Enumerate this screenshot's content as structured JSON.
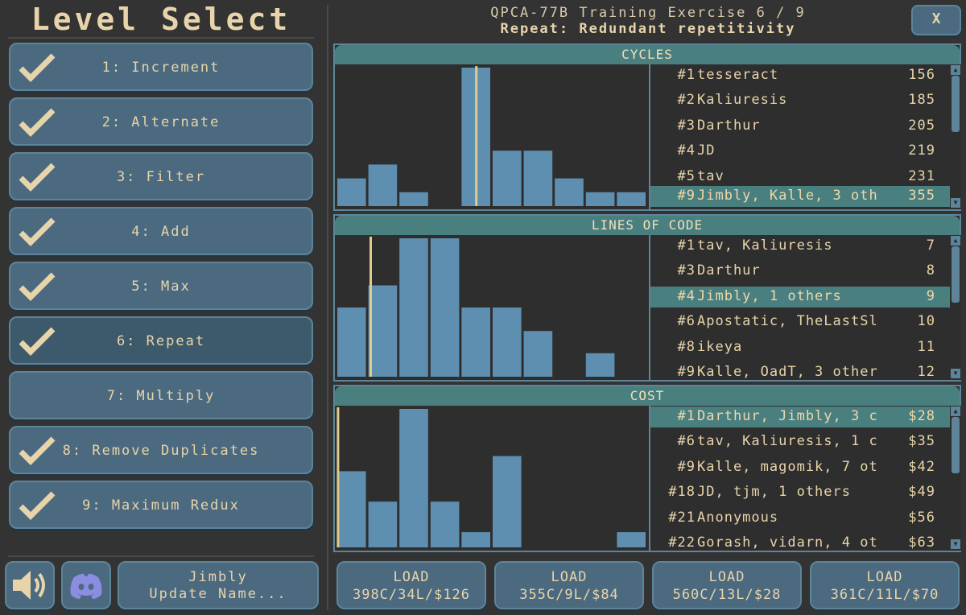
{
  "sidebar": {
    "title": "Level Select",
    "levels": [
      {
        "label": "1: Increment",
        "completed": true
      },
      {
        "label": "2: Alternate",
        "completed": true
      },
      {
        "label": "3: Filter",
        "completed": true
      },
      {
        "label": "4: Add",
        "completed": true
      },
      {
        "label": "5: Max",
        "completed": true
      },
      {
        "label": "6: Repeat",
        "completed": true,
        "active": true
      },
      {
        "label": "7: Multiply",
        "completed": false
      },
      {
        "label": "8: Remove Duplicates",
        "completed": true
      },
      {
        "label": "9: Maximum Redux",
        "completed": true
      }
    ],
    "sound_icon": "speaker-icon",
    "discord_icon": "discord-icon",
    "user_name": "Jimbly",
    "update_name_label": "Update Name..."
  },
  "header": {
    "line1": "QPCA-77B Training Exercise 6 / 9",
    "line2": "Repeat: Redundant repetitivity",
    "close_label": "X"
  },
  "colors": {
    "bar": "#5e8fb0",
    "marker": "#e0cc8a",
    "highlight": "#4a7f80",
    "button": "#4b6a80"
  },
  "panels": [
    {
      "title": "CYCLES",
      "histogram": {
        "bars": [
          0.2,
          0.3,
          0.1,
          0,
          1.0,
          0.4,
          0.4,
          0.2,
          0.1,
          0.1
        ],
        "marker": 4.5
      },
      "rows": [
        {
          "rank": "#1",
          "names": "tesseract",
          "score": "156",
          "highlight": false
        },
        {
          "rank": "#2",
          "names": "Kaliuresis",
          "score": "185",
          "highlight": false
        },
        {
          "rank": "#3",
          "names": "Darthur",
          "score": "205",
          "highlight": false
        },
        {
          "rank": "#4",
          "names": "JD",
          "score": "219",
          "highlight": false
        },
        {
          "rank": "#5",
          "names": "tav",
          "score": "231",
          "highlight": false
        },
        {
          "rank": "#9",
          "names": "Jimbly, Kalle, 3 oth",
          "score": "355",
          "highlight": true
        }
      ]
    },
    {
      "title": "LINES OF CODE",
      "histogram": {
        "bars": [
          0.5,
          0.66,
          1.0,
          1.0,
          0.5,
          0.5,
          0.33,
          0,
          0.17,
          0
        ],
        "marker": 1.1
      },
      "rows": [
        {
          "rank": "#1",
          "names": "tav, Kaliuresis",
          "score": "7",
          "highlight": false
        },
        {
          "rank": "#3",
          "names": "Darthur",
          "score": "8",
          "highlight": false
        },
        {
          "rank": "#4",
          "names": "Jimbly, 1 others",
          "score": "9",
          "highlight": true
        },
        {
          "rank": "#6",
          "names": "Apostatic, TheLastSl",
          "score": "10",
          "highlight": false
        },
        {
          "rank": "#8",
          "names": "ikeya",
          "score": "11",
          "highlight": false
        },
        {
          "rank": "#9",
          "names": "Kalle, OadT, 3 other",
          "score": "12",
          "highlight": false
        }
      ]
    },
    {
      "title": "COST",
      "histogram": {
        "bars": [
          0.55,
          0.33,
          1.0,
          0.33,
          0.11,
          0.66,
          0,
          0,
          0,
          0.11
        ],
        "marker": 0.05
      },
      "rows": [
        {
          "rank": "#1",
          "names": "Darthur, Jimbly, 3 c",
          "score": "$28",
          "highlight": true
        },
        {
          "rank": "#6",
          "names": "tav, Kaliuresis, 1 c",
          "score": "$35",
          "highlight": false
        },
        {
          "rank": "#9",
          "names": "Kalle, magomik, 7 ot",
          "score": "$42",
          "highlight": false
        },
        {
          "rank": "#18",
          "names": "JD, tjm, 1 others",
          "score": "$49",
          "highlight": false
        },
        {
          "rank": "#21",
          "names": "Anonymous",
          "score": "$56",
          "highlight": false
        },
        {
          "rank": "#22",
          "names": "Gorash, vidarn, 4 ot",
          "score": "$63",
          "highlight": false
        }
      ]
    }
  ],
  "loads": [
    {
      "label": "LOAD",
      "value": "398C/34L/$126"
    },
    {
      "label": "LOAD",
      "value": "355C/9L/$84"
    },
    {
      "label": "LOAD",
      "value": "560C/13L/$28"
    },
    {
      "label": "LOAD",
      "value": "361C/11L/$70"
    }
  ]
}
